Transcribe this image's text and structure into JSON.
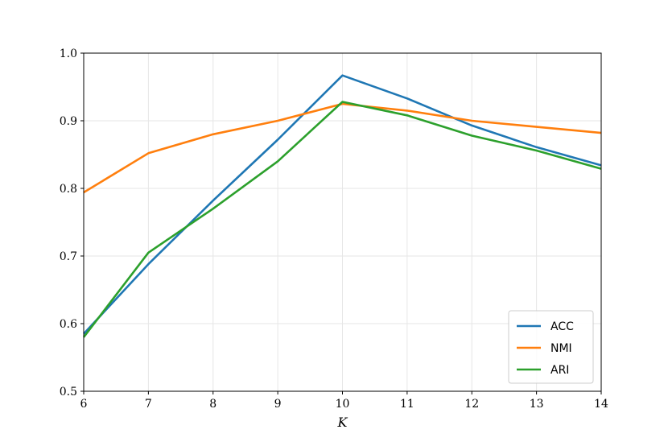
{
  "chart_data": {
    "type": "line",
    "title": "",
    "xlabel": "K",
    "ylabel": "",
    "x": [
      6,
      7,
      8,
      9,
      10,
      11,
      12,
      13,
      14
    ],
    "xlim": [
      6,
      14
    ],
    "ylim": [
      0.5,
      1.0
    ],
    "xticks": [
      "6",
      "7",
      "8",
      "9",
      "10",
      "11",
      "12",
      "13",
      "14"
    ],
    "yticks": [
      "0.5",
      "0.6",
      "0.7",
      "0.8",
      "0.9",
      "1.0"
    ],
    "grid": true,
    "legend_position": "lower-right",
    "series": [
      {
        "name": "ACC",
        "color": "#1f77b4",
        "values": [
          0.585,
          0.688,
          0.782,
          0.872,
          0.967,
          0.933,
          0.893,
          0.861,
          0.834
        ]
      },
      {
        "name": "NMI",
        "color": "#ff7f0e",
        "values": [
          0.794,
          0.852,
          0.88,
          0.9,
          0.925,
          0.915,
          0.9,
          0.891,
          0.882
        ]
      },
      {
        "name": "ARI",
        "color": "#2ca02c",
        "values": [
          0.58,
          0.705,
          0.77,
          0.84,
          0.928,
          0.908,
          0.878,
          0.856,
          0.829
        ]
      }
    ]
  }
}
